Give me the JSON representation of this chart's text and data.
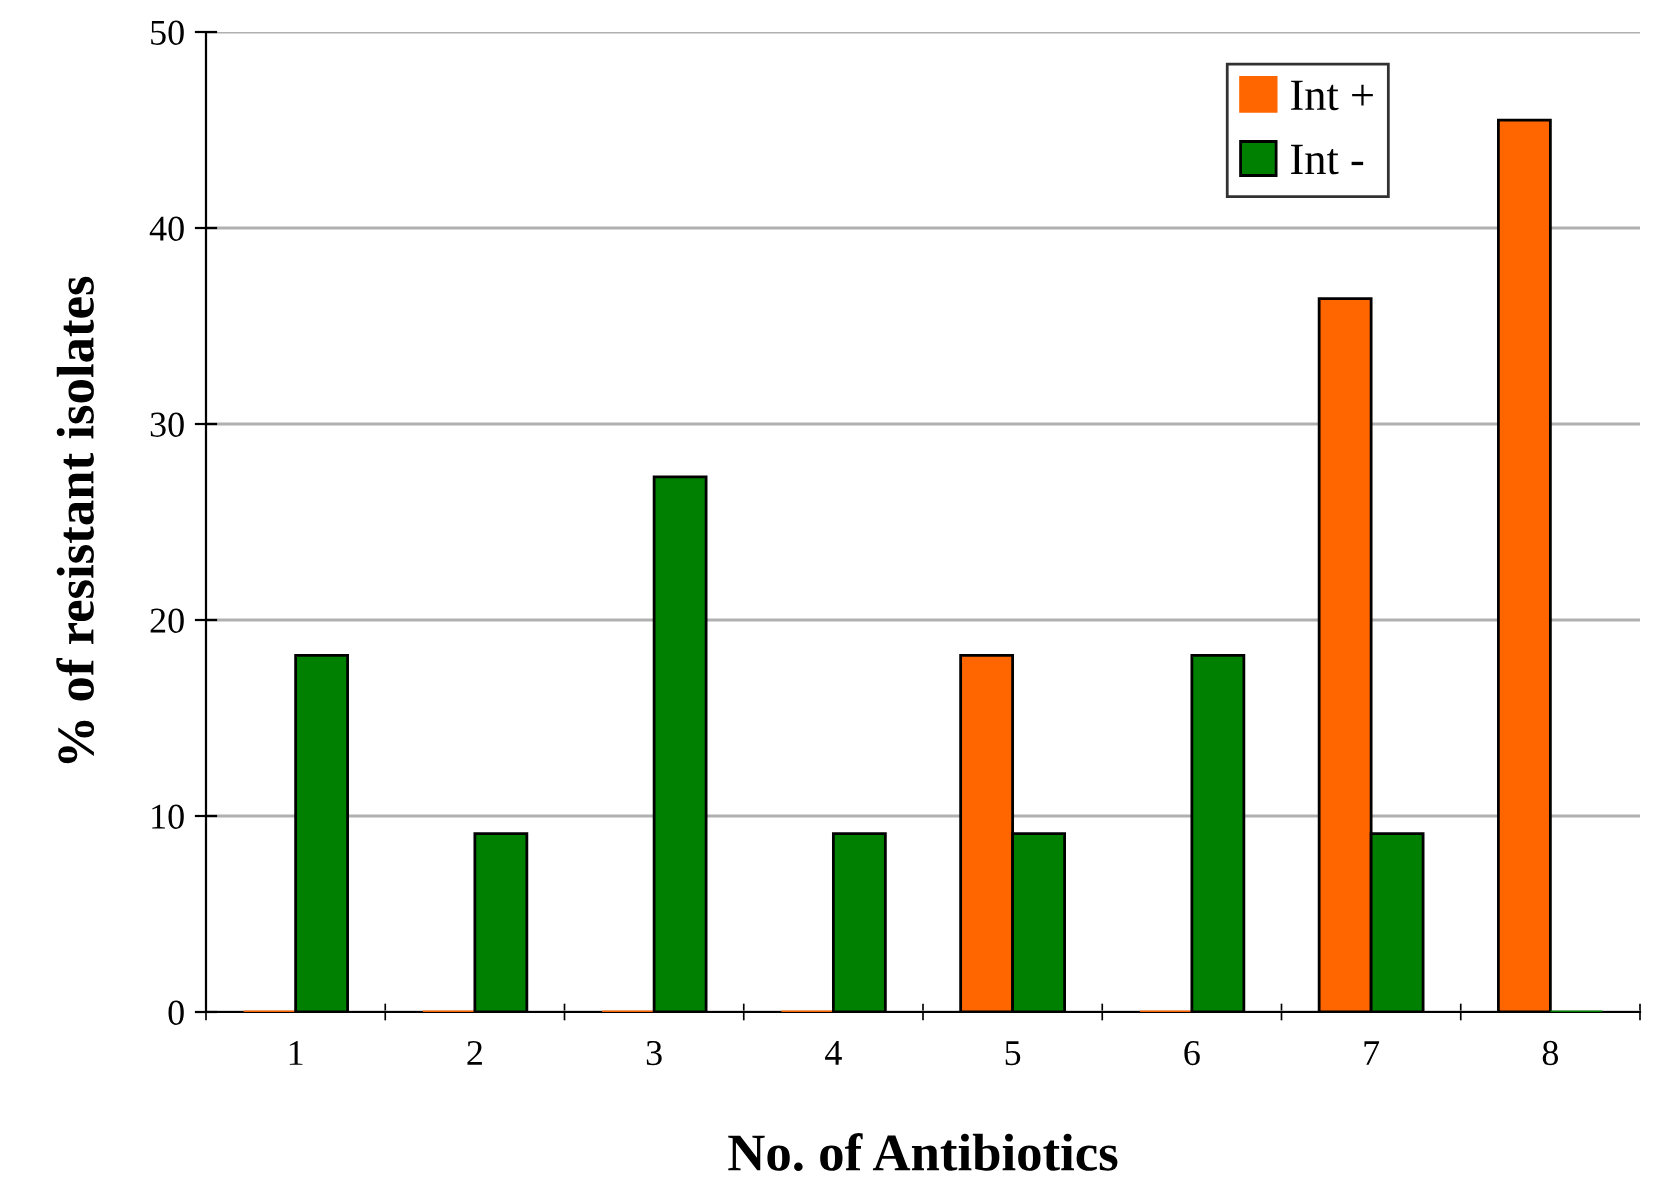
{
  "chart_data": {
    "type": "bar",
    "xlabel": "No. of Antibiotics",
    "ylabel": "% of resistant isolates",
    "categories": [
      "1",
      "2",
      "3",
      "4",
      "5",
      "6",
      "7",
      "8"
    ],
    "series": [
      {
        "name": "Int +",
        "color": "#ff6600",
        "values": [
          0,
          0,
          0,
          0,
          18.2,
          0,
          36.4,
          45.5
        ]
      },
      {
        "name": "Int -",
        "color": "#008000",
        "values": [
          18.2,
          9.1,
          27.3,
          9.1,
          9.1,
          18.2,
          9.1,
          0
        ]
      }
    ],
    "ylim": [
      0,
      50
    ],
    "yticks": [
      0,
      10,
      20,
      30,
      40,
      50
    ],
    "grid": "y",
    "legend": "top right"
  }
}
